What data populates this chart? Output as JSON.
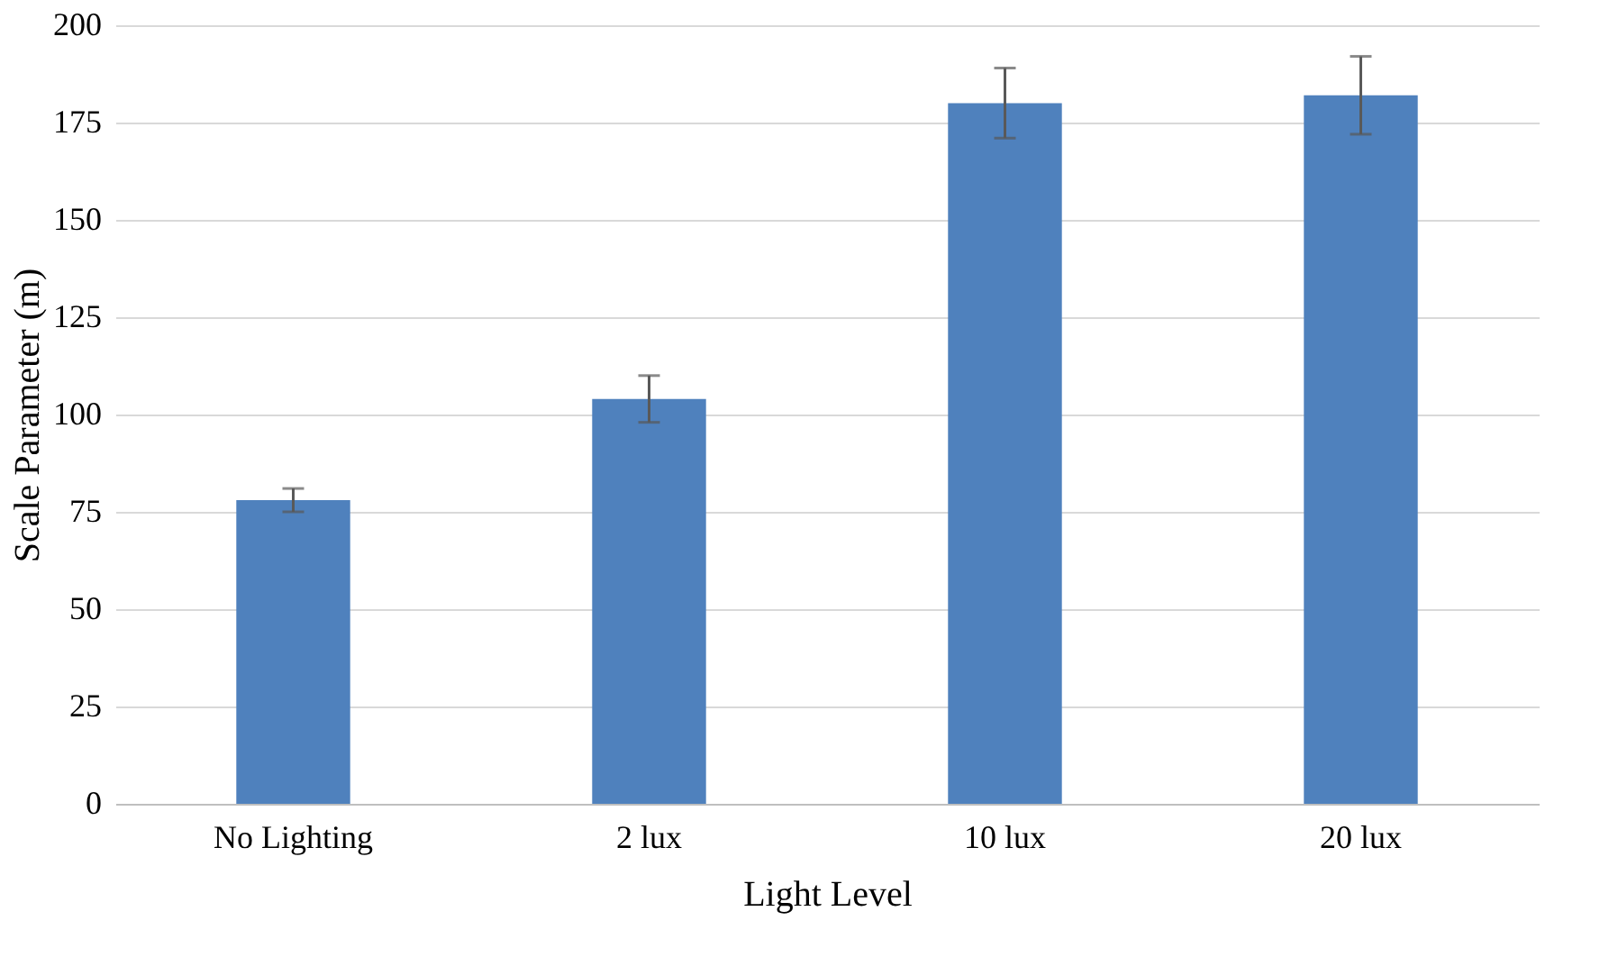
{
  "chart_data": {
    "type": "bar",
    "xlabel": "Light Level",
    "ylabel": "Scale Parameter (m)",
    "categories": [
      "No Lighting",
      "2 lux",
      "10 lux",
      "20 lux"
    ],
    "values": [
      78,
      104,
      180,
      182
    ],
    "errors": [
      3,
      6,
      9,
      10
    ],
    "color": "#4f81bd",
    "ylim": [
      0,
      200
    ],
    "yticks": [
      0,
      25,
      50,
      75,
      100,
      125,
      150,
      175,
      200
    ],
    "grid": "y"
  }
}
